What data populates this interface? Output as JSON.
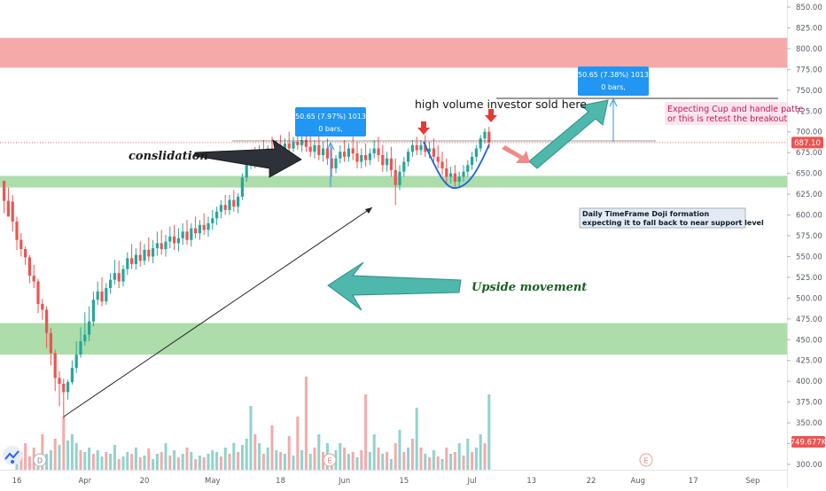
{
  "chart_data": {
    "type": "candlestick",
    "yaxis": {
      "ticks": [
        850,
        825,
        800,
        775,
        750,
        725,
        700,
        675,
        650,
        625,
        600,
        575,
        550,
        525,
        500,
        475,
        450,
        425,
        400,
        375,
        350,
        325,
        300
      ],
      "tick_labels": [
        "850.00",
        "825.00",
        "800.00",
        "775.00",
        "750.00",
        "725.00",
        "700.00",
        "675.00",
        "650.00",
        "625.00",
        "600.00",
        "575.00",
        "550.00",
        "525.00",
        "500.00",
        "475.00",
        "450.00",
        "425.00",
        "400.00",
        "375.00",
        "350.00",
        "325.00",
        "300.00"
      ],
      "ylim": [
        290,
        860
      ],
      "last_price_label": "687.10",
      "last_price": 687.1,
      "volume_label": "749.677K"
    },
    "xaxis": {
      "day_range": [
        0,
        170
      ],
      "tick_labels": [
        {
          "day": 0,
          "label": "16"
        },
        {
          "day": 16,
          "label": "Apr"
        },
        {
          "day": 30,
          "label": "20"
        },
        {
          "day": 46,
          "label": "May"
        },
        {
          "day": 62,
          "label": "18"
        },
        {
          "day": 77,
          "label": "Jun"
        },
        {
          "day": 91,
          "label": "15"
        },
        {
          "day": 107,
          "label": "Jul"
        },
        {
          "day": 121,
          "label": "13"
        },
        {
          "day": 135,
          "label": "22"
        },
        {
          "day": 146,
          "label": "Aug"
        },
        {
          "day": 159,
          "label": "17"
        },
        {
          "day": 173,
          "label": "Sep"
        }
      ]
    },
    "zones": [
      {
        "name": "resistance",
        "low": 777,
        "high": 813,
        "color": "#f4a4a4"
      },
      {
        "name": "support-upper",
        "low": 633,
        "high": 647,
        "color": "#a8dba7"
      },
      {
        "name": "support-lower",
        "low": 432,
        "high": 470,
        "color": "#a8dba7"
      }
    ],
    "candles": [
      [
        -3,
        641,
        640,
        617,
        602
      ],
      [
        -2,
        617,
        633,
        598,
        616
      ],
      [
        -1,
        616,
        624,
        592,
        580
      ],
      [
        0,
        592,
        598,
        570,
        558
      ],
      [
        1,
        570,
        578,
        559,
        550
      ],
      [
        2,
        559,
        562,
        549,
        540
      ],
      [
        3,
        549,
        552,
        527,
        518
      ],
      [
        4,
        527,
        540,
        520,
        512
      ],
      [
        5,
        520,
        523,
        493,
        482
      ],
      [
        6,
        493,
        499,
        486,
        474
      ],
      [
        7,
        486,
        490,
        458,
        440
      ],
      [
        8,
        458,
        464,
        434,
        419
      ],
      [
        9,
        434,
        438,
        404,
        388
      ],
      [
        10,
        404,
        412,
        397,
        370
      ],
      [
        11,
        397,
        403,
        387,
        355
      ],
      [
        12,
        387,
        402,
        399,
        378
      ],
      [
        13,
        399,
        425,
        416,
        396
      ],
      [
        14,
        416,
        448,
        432,
        410
      ],
      [
        15,
        432,
        465,
        448,
        428
      ],
      [
        16,
        448,
        483,
        456,
        443
      ],
      [
        17,
        456,
        490,
        472,
        448
      ],
      [
        18,
        472,
        508,
        498,
        466
      ],
      [
        19,
        498,
        520,
        508,
        492
      ],
      [
        20,
        508,
        525,
        496,
        490
      ],
      [
        21,
        496,
        518,
        512,
        492
      ],
      [
        22,
        512,
        530,
        522,
        505
      ],
      [
        23,
        522,
        546,
        530,
        516
      ],
      [
        24,
        530,
        545,
        520,
        512
      ],
      [
        25,
        520,
        540,
        535,
        514
      ],
      [
        26,
        535,
        555,
        548,
        528
      ],
      [
        27,
        548,
        565,
        541,
        535
      ],
      [
        28,
        541,
        560,
        552,
        534
      ],
      [
        29,
        552,
        568,
        545,
        538
      ],
      [
        30,
        545,
        565,
        558,
        540
      ],
      [
        31,
        558,
        573,
        550,
        544
      ],
      [
        32,
        550,
        570,
        560,
        542
      ],
      [
        33,
        560,
        580,
        566,
        551
      ],
      [
        34,
        566,
        582,
        559,
        552
      ],
      [
        35,
        559,
        576,
        568,
        550
      ],
      [
        36,
        568,
        586,
        574,
        560
      ],
      [
        37,
        574,
        588,
        566,
        558
      ],
      [
        38,
        566,
        584,
        572,
        556
      ],
      [
        39,
        572,
        590,
        580,
        564
      ],
      [
        40,
        580,
        594,
        570,
        564
      ],
      [
        41,
        570,
        590,
        584,
        562
      ],
      [
        42,
        584,
        598,
        578,
        572
      ],
      [
        43,
        578,
        594,
        588,
        570
      ],
      [
        44,
        588,
        602,
        582,
        576
      ],
      [
        45,
        582,
        598,
        590,
        574
      ],
      [
        46,
        590,
        606,
        596,
        582
      ],
      [
        47,
        596,
        610,
        604,
        588
      ],
      [
        48,
        604,
        618,
        612,
        596
      ],
      [
        49,
        612,
        624,
        606,
        600
      ],
      [
        50,
        606,
        624,
        618,
        600
      ],
      [
        51,
        618,
        630,
        610,
        604
      ],
      [
        52,
        610,
        626,
        622,
        602
      ],
      [
        53,
        622,
        650,
        645,
        618
      ],
      [
        54,
        645,
        666,
        660,
        640
      ],
      [
        55,
        660,
        676,
        668,
        655
      ],
      [
        56,
        668,
        682,
        662,
        656
      ],
      [
        57,
        662,
        684,
        676,
        658
      ],
      [
        58,
        676,
        690,
        670,
        664
      ],
      [
        59,
        670,
        684,
        680,
        662
      ],
      [
        60,
        680,
        694,
        676,
        670
      ],
      [
        61,
        676,
        690,
        684,
        668
      ],
      [
        62,
        684,
        696,
        678,
        670
      ],
      [
        63,
        678,
        692,
        686,
        672
      ],
      [
        64,
        686,
        700,
        680,
        674
      ],
      [
        65,
        680,
        694,
        688,
        676
      ],
      [
        66,
        688,
        700,
        684,
        678
      ],
      [
        67,
        684,
        698,
        690,
        676
      ],
      [
        68,
        690,
        704,
        682,
        676
      ],
      [
        69,
        682,
        696,
        676,
        670
      ],
      [
        70,
        676,
        690,
        684,
        668
      ],
      [
        71,
        684,
        696,
        672,
        666
      ],
      [
        72,
        672,
        688,
        680,
        664
      ],
      [
        73,
        680,
        692,
        668,
        660
      ],
      [
        74,
        668,
        682,
        656,
        646
      ],
      [
        75,
        656,
        672,
        668,
        650
      ],
      [
        76,
        668,
        684,
        676,
        662
      ],
      [
        77,
        676,
        690,
        670,
        664
      ],
      [
        78,
        670,
        686,
        680,
        664
      ],
      [
        79,
        680,
        694,
        674,
        666
      ],
      [
        80,
        674,
        688,
        664,
        656
      ],
      [
        81,
        664,
        680,
        672,
        656
      ],
      [
        82,
        672,
        686,
        666,
        658
      ],
      [
        83,
        666,
        680,
        674,
        660
      ],
      [
        84,
        674,
        690,
        680,
        668
      ],
      [
        85,
        680,
        694,
        672,
        664
      ],
      [
        86,
        672,
        684,
        660,
        652
      ],
      [
        87,
        660,
        676,
        668,
        652
      ],
      [
        88,
        668,
        682,
        654,
        646
      ],
      [
        89,
        654,
        668,
        636,
        612
      ],
      [
        90,
        636,
        660,
        652,
        630
      ],
      [
        91,
        652,
        670,
        664,
        646
      ],
      [
        92,
        664,
        680,
        676,
        658
      ],
      [
        93,
        676,
        690,
        684,
        670
      ],
      [
        94,
        684,
        694,
        678,
        672
      ],
      [
        95,
        678,
        690,
        684,
        672
      ],
      [
        96,
        684,
        696,
        676,
        670
      ],
      [
        97,
        676,
        688,
        680,
        668
      ],
      [
        98,
        680,
        692,
        670,
        664
      ],
      [
        99,
        670,
        684,
        664,
        656
      ],
      [
        100,
        664,
        676,
        656,
        648
      ],
      [
        101,
        656,
        668,
        646,
        638
      ],
      [
        102,
        646,
        658,
        650,
        638
      ],
      [
        103,
        650,
        660,
        640,
        634
      ],
      [
        104,
        640,
        652,
        646,
        634
      ],
      [
        105,
        646,
        660,
        652,
        640
      ],
      [
        106,
        652,
        666,
        660,
        646
      ],
      [
        107,
        660,
        676,
        670,
        654
      ],
      [
        108,
        670,
        684,
        680,
        664
      ],
      [
        109,
        680,
        696,
        692,
        676
      ],
      [
        110,
        692,
        704,
        700,
        686
      ],
      [
        111,
        700,
        706,
        687,
        680
      ]
    ],
    "volume": [
      [
        0,
        12,
        "up"
      ],
      [
        1,
        20,
        "dn"
      ],
      [
        2,
        30,
        "dn"
      ],
      [
        3,
        15,
        "dn"
      ],
      [
        4,
        25,
        "dn"
      ],
      [
        5,
        10,
        "up"
      ],
      [
        6,
        40,
        "dn"
      ],
      [
        7,
        18,
        "up"
      ],
      [
        8,
        22,
        "up"
      ],
      [
        9,
        35,
        "dn"
      ],
      [
        10,
        28,
        "up"
      ],
      [
        11,
        60,
        "dn"
      ],
      [
        12,
        33,
        "up"
      ],
      [
        13,
        40,
        "up"
      ],
      [
        14,
        30,
        "up"
      ],
      [
        15,
        22,
        "dn"
      ],
      [
        16,
        20,
        "up"
      ],
      [
        17,
        25,
        "up"
      ],
      [
        18,
        18,
        "dn"
      ],
      [
        19,
        22,
        "up"
      ],
      [
        20,
        15,
        "up"
      ],
      [
        21,
        20,
        "dn"
      ],
      [
        22,
        18,
        "up"
      ],
      [
        23,
        28,
        "up"
      ],
      [
        24,
        12,
        "dn"
      ],
      [
        25,
        15,
        "up"
      ],
      [
        26,
        20,
        "up"
      ],
      [
        27,
        18,
        "dn"
      ],
      [
        28,
        25,
        "up"
      ],
      [
        29,
        14,
        "dn"
      ],
      [
        30,
        16,
        "up"
      ],
      [
        31,
        24,
        "dn"
      ],
      [
        32,
        12,
        "up"
      ],
      [
        33,
        18,
        "up"
      ],
      [
        34,
        20,
        "dn"
      ],
      [
        35,
        30,
        "up"
      ],
      [
        36,
        16,
        "dn"
      ],
      [
        37,
        22,
        "up"
      ],
      [
        38,
        14,
        "dn"
      ],
      [
        39,
        18,
        "up"
      ],
      [
        40,
        25,
        "dn"
      ],
      [
        41,
        20,
        "up"
      ],
      [
        42,
        12,
        "dn"
      ],
      [
        43,
        16,
        "up"
      ],
      [
        44,
        14,
        "dn"
      ],
      [
        45,
        18,
        "up"
      ],
      [
        46,
        22,
        "up"
      ],
      [
        47,
        20,
        "up"
      ],
      [
        48,
        15,
        "dn"
      ],
      [
        49,
        25,
        "up"
      ],
      [
        50,
        18,
        "dn"
      ],
      [
        51,
        30,
        "up"
      ],
      [
        52,
        20,
        "dn"
      ],
      [
        53,
        28,
        "up"
      ],
      [
        54,
        35,
        "up"
      ],
      [
        55,
        72,
        "up"
      ],
      [
        56,
        40,
        "dn"
      ],
      [
        57,
        30,
        "up"
      ],
      [
        58,
        18,
        "dn"
      ],
      [
        59,
        25,
        "up"
      ],
      [
        60,
        50,
        "dn"
      ],
      [
        61,
        22,
        "up"
      ],
      [
        62,
        20,
        "dn"
      ],
      [
        63,
        18,
        "up"
      ],
      [
        64,
        38,
        "dn"
      ],
      [
        65,
        16,
        "up"
      ],
      [
        66,
        60,
        "dn"
      ],
      [
        67,
        22,
        "up"
      ],
      [
        68,
        105,
        "dn"
      ],
      [
        69,
        18,
        "up"
      ],
      [
        70,
        25,
        "dn"
      ],
      [
        71,
        40,
        "up"
      ],
      [
        72,
        20,
        "dn"
      ],
      [
        73,
        30,
        "up"
      ],
      [
        74,
        16,
        "dn"
      ],
      [
        75,
        22,
        "up"
      ],
      [
        76,
        30,
        "up"
      ],
      [
        77,
        25,
        "dn"
      ],
      [
        78,
        18,
        "up"
      ],
      [
        79,
        20,
        "dn"
      ],
      [
        80,
        14,
        "up"
      ],
      [
        81,
        22,
        "dn"
      ],
      [
        82,
        85,
        "dn"
      ],
      [
        83,
        20,
        "up"
      ],
      [
        84,
        40,
        "up"
      ],
      [
        85,
        25,
        "dn"
      ],
      [
        86,
        18,
        "up"
      ],
      [
        87,
        20,
        "dn"
      ],
      [
        88,
        12,
        "up"
      ],
      [
        89,
        30,
        "dn"
      ],
      [
        90,
        45,
        "up"
      ],
      [
        91,
        20,
        "dn"
      ],
      [
        92,
        25,
        "up"
      ],
      [
        93,
        35,
        "dn"
      ],
      [
        94,
        70,
        "up"
      ],
      [
        95,
        25,
        "dn"
      ],
      [
        96,
        18,
        "up"
      ],
      [
        97,
        14,
        "dn"
      ],
      [
        98,
        22,
        "up"
      ],
      [
        99,
        15,
        "dn"
      ],
      [
        100,
        12,
        "up"
      ],
      [
        101,
        25,
        "dn"
      ],
      [
        102,
        18,
        "up"
      ],
      [
        103,
        20,
        "dn"
      ],
      [
        104,
        30,
        "up"
      ],
      [
        105,
        16,
        "dn"
      ],
      [
        106,
        35,
        "up"
      ],
      [
        107,
        20,
        "dn"
      ],
      [
        108,
        25,
        "up"
      ],
      [
        109,
        40,
        "up"
      ],
      [
        110,
        30,
        "dn"
      ],
      [
        111,
        85,
        "up"
      ]
    ],
    "measures": [
      {
        "text": "50.65 (7.97%) 1013",
        "subtext": "0 bars,"
      },
      {
        "text": "50.65 (7.38%) 1013",
        "subtext": "0 bars,"
      }
    ]
  },
  "annotations": {
    "consolidation": "conslidation",
    "upside": "Upside movement",
    "sold": "high volume investor sold here",
    "cup_line1": "Expecting Cup and handle patte",
    "cup_line2": "or this is retest the breakout",
    "doji_line1": "Daily TimeFrame Doji formation",
    "doji_line2": "expecting it to fall back to near support level"
  },
  "markers": {
    "dividend": "D",
    "earnings": "E"
  },
  "colors": {
    "up": "#26a69a",
    "down": "#ef5350",
    "vol_up": "#8fd3cc",
    "vol_down": "#f4aaaa",
    "teal_arrow": "#4fb8ad",
    "dark_arrow": "#2d3138",
    "measure_blue": "#2196f3",
    "last_price_bg": "#ef5350",
    "volume_label_bg": "#ef5350"
  }
}
